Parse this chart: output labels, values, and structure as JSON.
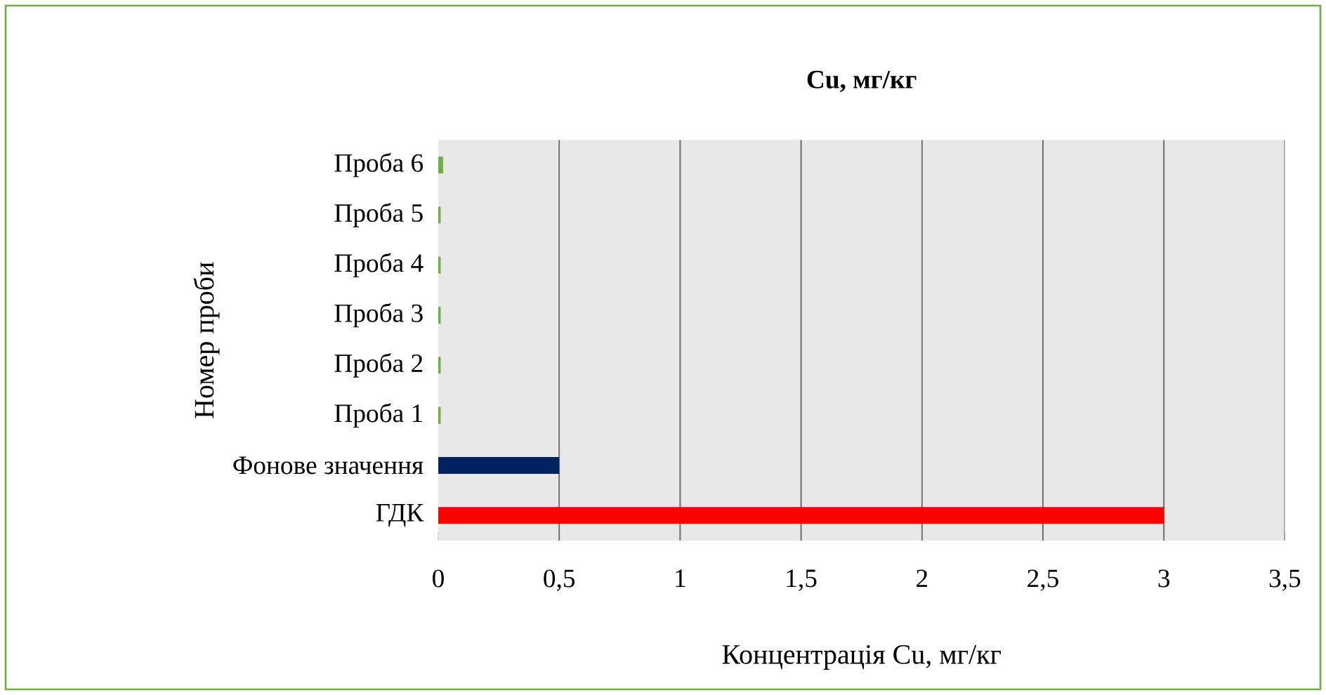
{
  "chart_data": {
    "type": "bar",
    "orientation": "horizontal",
    "title": "**Cu, мг/кг**",
    "xlabel": "Концентрація Cu, мг/кг",
    "ylabel": "Номер проби",
    "categories": [
      "Проба 6",
      "Проба 5",
      "Проба 4",
      "Проба 3",
      "Проба 2",
      "Проба 1",
      "Фонове значення",
      "ГДК"
    ],
    "values": [
      0.02,
      0.01,
      0.01,
      0.01,
      0.01,
      0.01,
      0.5,
      3
    ],
    "colors": [
      "#70ad47",
      "#70ad47",
      "#70ad47",
      "#70ad47",
      "#70ad47",
      "#70ad47",
      "#002060",
      "#ff0000"
    ],
    "xlim": [
      0,
      3.5
    ],
    "xticks": [
      0,
      {
        "value": 0.5,
        "label": "0,5"
      },
      1,
      {
        "value": 1.5,
        "label": "1,5"
      },
      2,
      {
        "value": 2.5,
        "label": "2,5"
      },
      3,
      {
        "value": 3.5,
        "label": "3,5"
      }
    ],
    "grid": "x"
  }
}
